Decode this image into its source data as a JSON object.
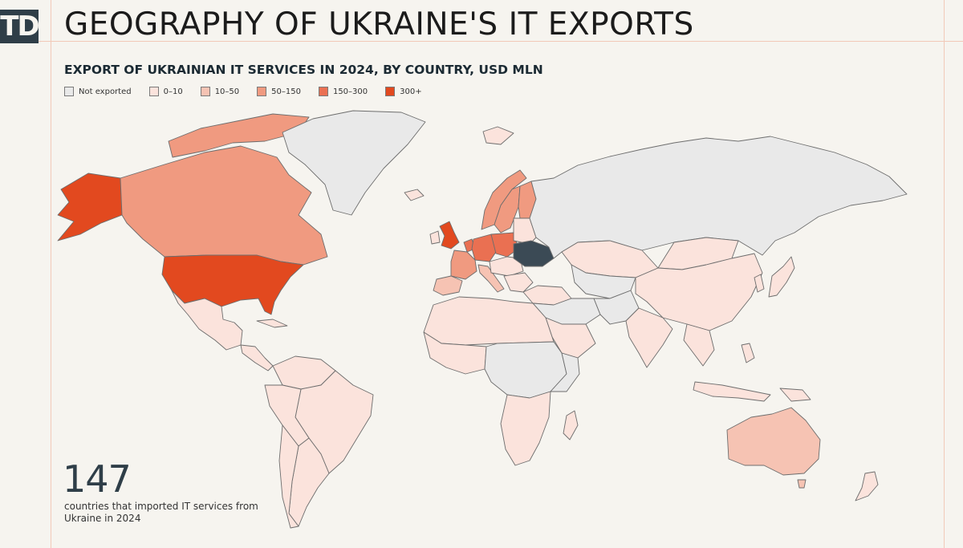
{
  "header": {
    "logo_text": "TD",
    "title": "GEOGRAPHY OF UKRAINE'S IT EXPORTS"
  },
  "map": {
    "subtitle": "EXPORT OF UKRAINIAN IT SERVICES IN 2024, BY COUNTRY, USD MLN",
    "legend": [
      {
        "label": "Not exported",
        "color": "#e9e9e9"
      },
      {
        "label": "0–10",
        "color": "#fbe3dc"
      },
      {
        "label": "10–50",
        "color": "#f6c3b3"
      },
      {
        "label": "50–150",
        "color": "#f09a80"
      },
      {
        "label": "150–300",
        "color": "#ea7052"
      },
      {
        "label": "300+",
        "color": "#e2491f"
      }
    ],
    "highlight_color": "#3b4a55",
    "country_categories": {
      "Ukraine": "origin",
      "United States": "300+",
      "Alaska (USA)": "300+",
      "United Kingdom": "300+",
      "Canada": "50–150",
      "Greenland": "Not exported",
      "Russia": "Not exported",
      "Germany": "150–300",
      "Poland": "150–300",
      "Netherlands": "150–300",
      "Sweden": "50–150",
      "Norway": "50–150",
      "Finland": "50–150",
      "France": "50–150",
      "Spain": "10–50",
      "Italy": "10–50",
      "Mexico": "0–10",
      "Brazil": "0–10",
      "China": "0–10",
      "India": "0–10",
      "Australia": "10–50",
      "Kazakhstan": "0–10",
      "Saudi Arabia": "0–10",
      "Argentina": "0–10"
    }
  },
  "stat": {
    "number": "147",
    "caption": "countries that imported IT services from Ukraine in 2024"
  }
}
